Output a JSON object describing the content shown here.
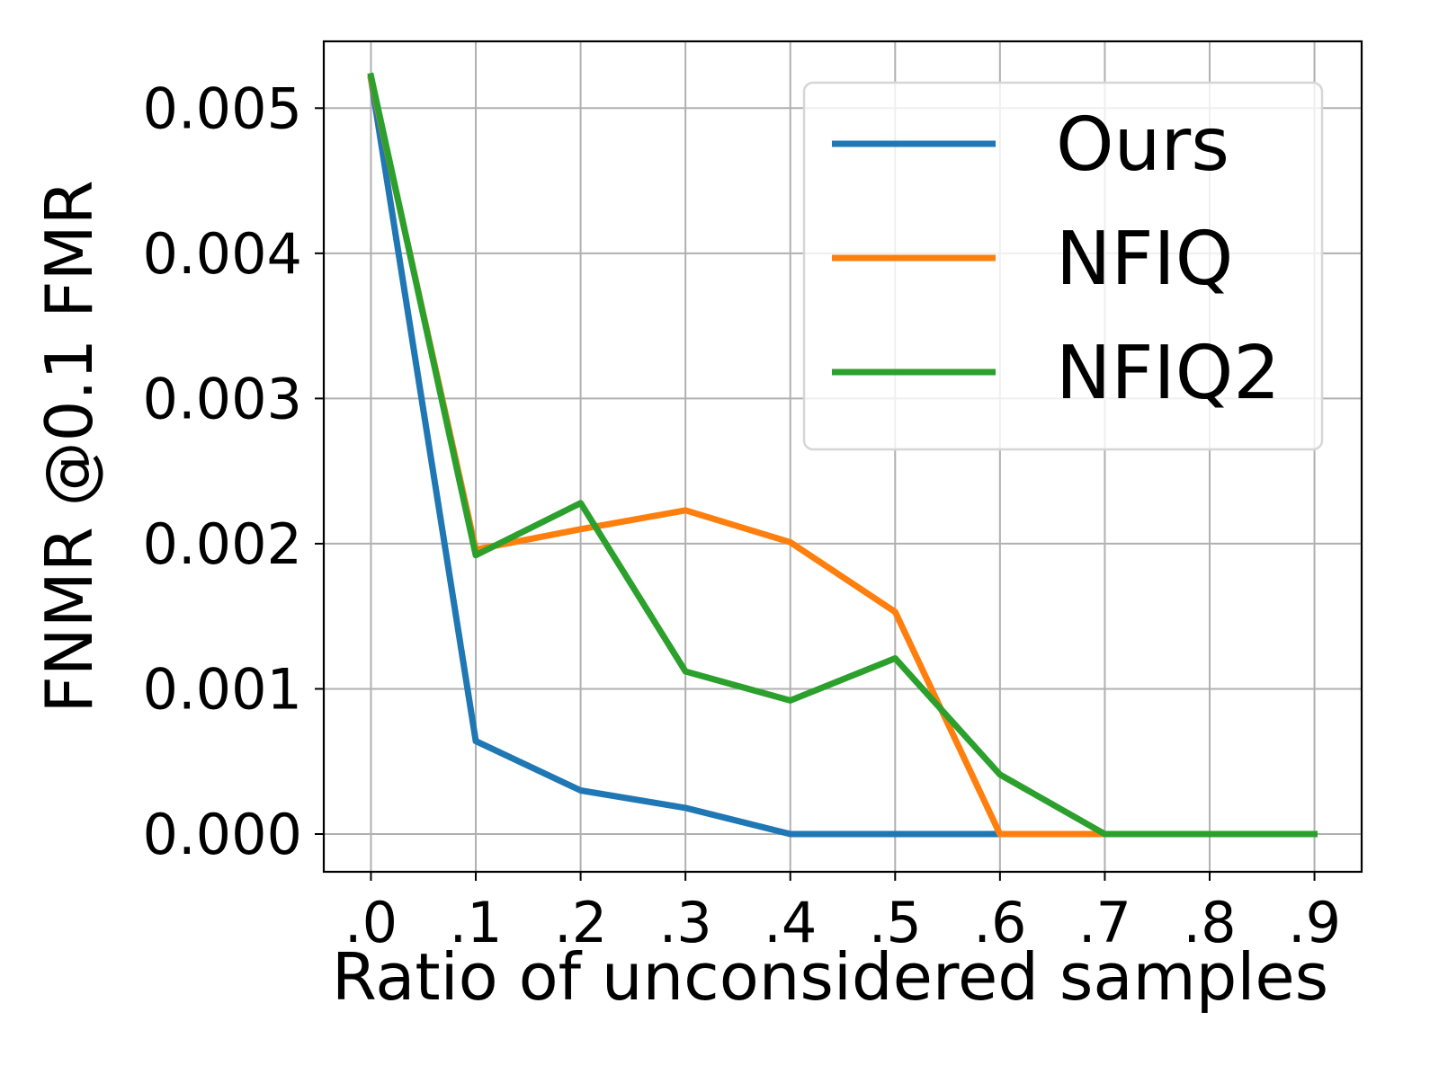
{
  "chart_data": {
    "type": "line",
    "title": "",
    "xlabel": "Ratio of unconsidered samples",
    "ylabel": "FNMR @0.1 FMR",
    "x": [
      0.0,
      0.1,
      0.2,
      0.3,
      0.4,
      0.5,
      0.6,
      0.7,
      0.8,
      0.9
    ],
    "x_tick_labels": [
      ".0",
      ".1",
      ".2",
      ".3",
      ".4",
      ".5",
      ".6",
      ".7",
      ".8",
      ".9"
    ],
    "y_ticks": [
      0.0,
      0.001,
      0.002,
      0.003,
      0.004,
      0.005
    ],
    "y_tick_labels": [
      "0.000",
      "0.001",
      "0.002",
      "0.003",
      "0.004",
      "0.005"
    ],
    "xlim": [
      -0.045,
      0.945
    ],
    "ylim": [
      -0.00026,
      0.00546
    ],
    "grid": true,
    "legend_position": "top-right",
    "series": [
      {
        "name": "Ours",
        "color": "#1f77b4",
        "values": [
          0.0052,
          0.00064,
          0.0003,
          0.00018,
          0.0,
          0.0,
          0.0,
          0.0,
          0.0,
          0.0
        ]
      },
      {
        "name": "NFIQ",
        "color": "#ff7f0e",
        "values": [
          0.0052,
          0.00196,
          0.0021,
          0.00223,
          0.00201,
          0.00153,
          0.0,
          0.0,
          0.0,
          0.0
        ]
      },
      {
        "name": "NFIQ2",
        "color": "#2ca02c",
        "values": [
          0.00522,
          0.00192,
          0.00228,
          0.00112,
          0.00092,
          0.00121,
          0.00041,
          0.0,
          0.0,
          0.0
        ]
      }
    ]
  }
}
